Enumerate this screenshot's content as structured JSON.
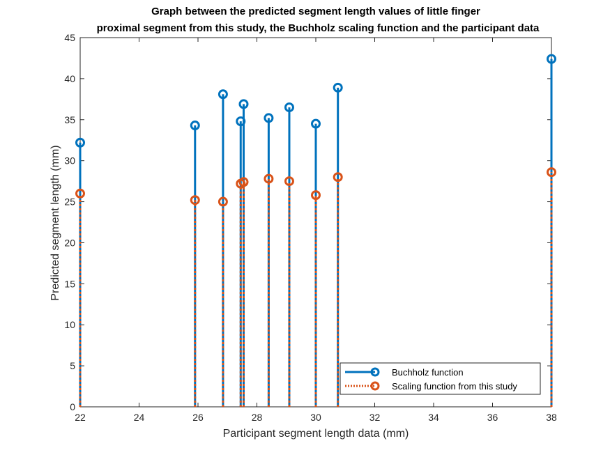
{
  "chart_data": {
    "type": "stem",
    "title_line1": "Graph between the predicted segment length values of little finger",
    "title_line2": "proximal segment from this study, the Buchholz scaling function and the participant data",
    "xlabel": "Participant segment length data (mm)",
    "ylabel": "Predicted segment length (mm)",
    "xlim": [
      22,
      38
    ],
    "ylim": [
      0,
      45
    ],
    "xticks": [
      22,
      24,
      26,
      28,
      30,
      32,
      34,
      36,
      38
    ],
    "yticks": [
      0,
      5,
      10,
      15,
      20,
      25,
      30,
      35,
      40,
      45
    ],
    "legend_position": "bottom-right",
    "grid": false,
    "series": [
      {
        "name": "Buchholz function",
        "color": "#0072BD",
        "line_style": "solid",
        "x": [
          22.0,
          25.9,
          26.85,
          27.45,
          27.55,
          28.4,
          29.1,
          30.0,
          30.75,
          38.0
        ],
        "y": [
          32.2,
          34.3,
          38.1,
          34.8,
          36.9,
          35.2,
          36.5,
          34.5,
          38.9,
          42.4
        ]
      },
      {
        "name": "Scaling function from this study",
        "color": "#D95319",
        "line_style": "dotted",
        "x": [
          22.0,
          25.9,
          26.85,
          27.45,
          27.55,
          28.4,
          29.1,
          30.0,
          30.75,
          38.0
        ],
        "y": [
          26.0,
          25.2,
          25.0,
          27.2,
          27.4,
          27.8,
          27.5,
          25.8,
          28.0,
          28.6
        ]
      }
    ]
  }
}
